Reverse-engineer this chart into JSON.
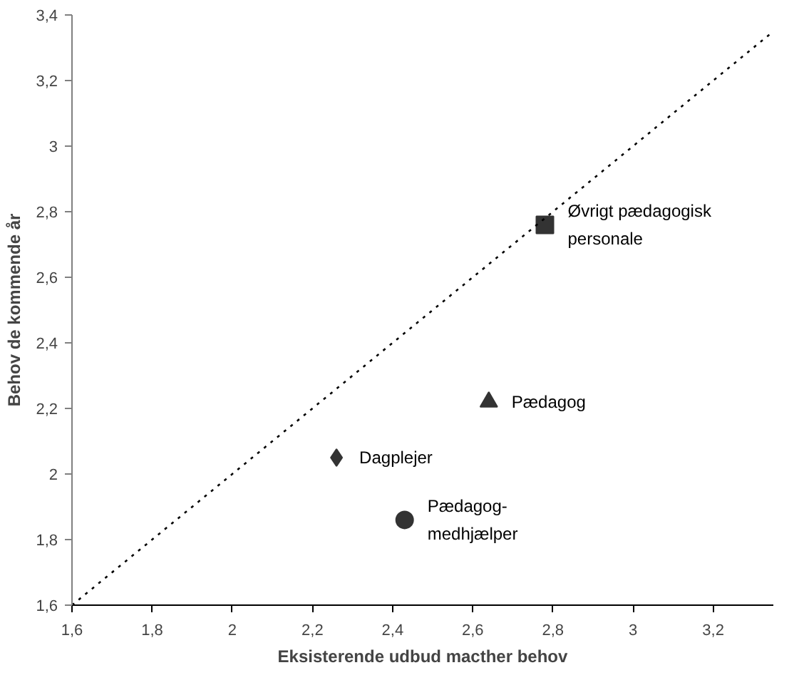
{
  "chart_data": {
    "type": "scatter",
    "xlabel": "Eksisterende udbud macther behov",
    "ylabel": "Behov de kommende år",
    "xlim": [
      1.6,
      3.35
    ],
    "ylim": [
      1.6,
      3.4
    ],
    "xticks": [
      {
        "value": 1.6,
        "label": "1,6"
      },
      {
        "value": 1.8,
        "label": "1,8"
      },
      {
        "value": 2,
        "label": "2"
      },
      {
        "value": 2.2,
        "label": "2,2"
      },
      {
        "value": 2.4,
        "label": "2,4"
      },
      {
        "value": 2.6,
        "label": "2,6"
      },
      {
        "value": 2.8,
        "label": "2,8"
      },
      {
        "value": 3,
        "label": "3"
      },
      {
        "value": 3.2,
        "label": "3,2"
      }
    ],
    "yticks": [
      {
        "value": 1.6,
        "label": "1,6"
      },
      {
        "value": 1.8,
        "label": "1,8"
      },
      {
        "value": 2,
        "label": "2"
      },
      {
        "value": 2.2,
        "label": "2,2"
      },
      {
        "value": 2.4,
        "label": "2,4"
      },
      {
        "value": 2.6,
        "label": "2,6"
      },
      {
        "value": 2.8,
        "label": "2,8"
      },
      {
        "value": 3,
        "label": "3"
      },
      {
        "value": 3.2,
        "label": "3,2"
      },
      {
        "value": 3.4,
        "label": "3,4"
      }
    ],
    "grid": false,
    "legend": false,
    "series": [
      {
        "name": "Dagplejer",
        "color": "#333333",
        "marker": "diamond",
        "x": [
          2.26
        ],
        "values": [
          2.05
        ]
      },
      {
        "name": "Pædagog-\nmedhjælper",
        "color": "#333333",
        "marker": "circle",
        "x": [
          2.43
        ],
        "values": [
          1.86
        ]
      },
      {
        "name": "Pædagog",
        "color": "#333333",
        "marker": "triangle",
        "x": [
          2.64
        ],
        "values": [
          2.22
        ]
      },
      {
        "name": "Øvrigt pædagogisk\npersonale",
        "color": "#333333",
        "marker": "square",
        "x": [
          2.78
        ],
        "values": [
          2.76
        ]
      },
      {
        "type": "line",
        "color": "#000000",
        "line_style": "dotted",
        "marker": "none",
        "x": [
          1.6,
          3.35
        ],
        "values": [
          1.6,
          3.35
        ]
      }
    ]
  }
}
